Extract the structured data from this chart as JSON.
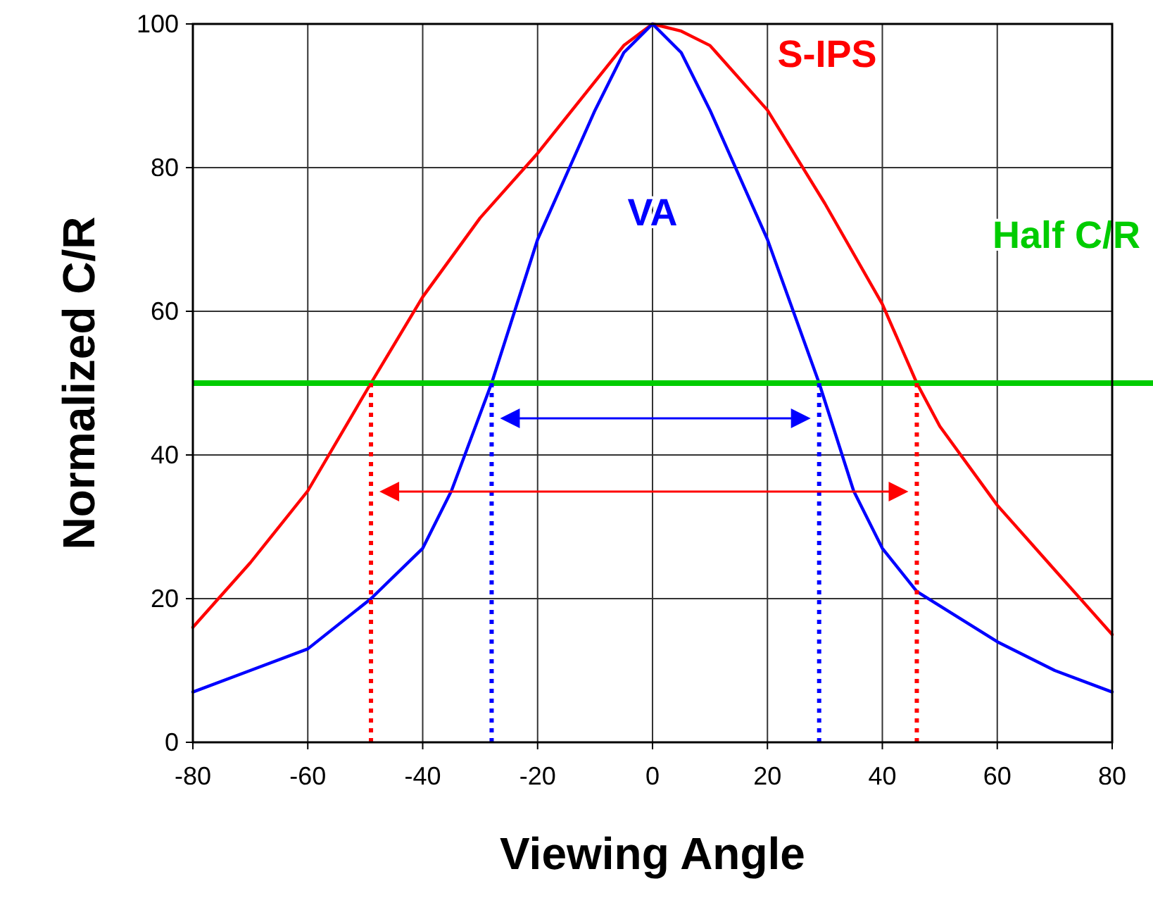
{
  "chart_data": {
    "type": "line",
    "xlabel": "Viewing Angle",
    "ylabel": "Normalized C/R",
    "xlim": [
      -80,
      80
    ],
    "xticks": [
      -80,
      -60,
      -40,
      -20,
      0,
      20,
      40,
      60,
      80
    ],
    "ylim": [
      0,
      100
    ],
    "yticks": [
      0,
      20,
      40,
      60,
      80,
      100
    ],
    "grid": true,
    "marker": "none",
    "line_style": "solid",
    "series": [
      {
        "name": "S-IPS",
        "color": "#ff0000",
        "x": [
          -80,
          -70,
          -60,
          -49,
          -40,
          -30,
          -20,
          -10,
          -5,
          0,
          5,
          10,
          20,
          30,
          40,
          46,
          50,
          60,
          70,
          80
        ],
        "values": [
          16,
          25,
          35,
          50,
          62,
          73,
          82,
          92,
          97,
          100,
          99,
          97,
          88,
          75,
          61,
          50,
          44,
          33,
          24,
          15
        ]
      },
      {
        "name": "VA",
        "color": "#0000ff",
        "x": [
          -80,
          -70,
          -60,
          -49,
          -40,
          -35,
          -28,
          -20,
          -10,
          -5,
          0,
          5,
          10,
          20,
          29,
          35,
          40,
          46,
          60,
          70,
          80
        ],
        "values": [
          7,
          10,
          13,
          20,
          27,
          35,
          50,
          70,
          88,
          96,
          100,
          96,
          88,
          70,
          50,
          35,
          27,
          21,
          14,
          10,
          7
        ]
      }
    ],
    "ref_lines": [
      {
        "axis": "y",
        "value": 50,
        "label": "Half C/R",
        "color": "#00cc00",
        "line_style": "solid"
      },
      {
        "axis": "x",
        "value": -49,
        "color": "#ff0000",
        "line_style": "dotted"
      },
      {
        "axis": "x",
        "value": 46,
        "color": "#ff0000",
        "line_style": "dotted"
      },
      {
        "axis": "x",
        "value": -28,
        "color": "#0000ff",
        "line_style": "dotted"
      },
      {
        "axis": "x",
        "value": 29,
        "color": "#0000ff",
        "line_style": "dotted"
      }
    ]
  }
}
